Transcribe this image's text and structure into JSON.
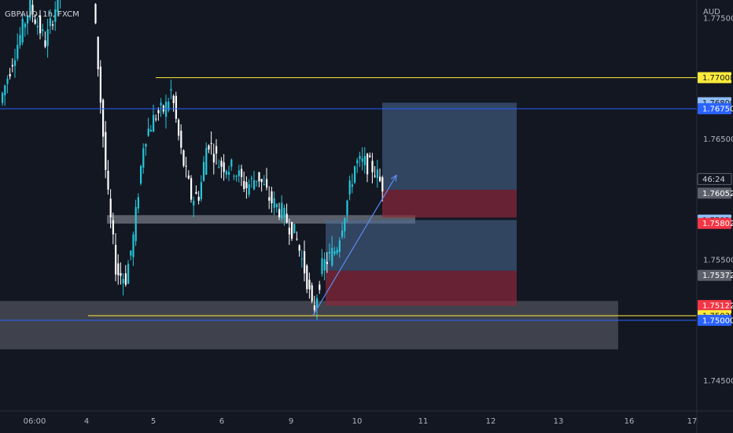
{
  "header": {
    "symbol_label": "GBPAUD, 1h, FXCM",
    "currency": "AUD"
  },
  "colors": {
    "background": "#131722",
    "bull_candle": "#26c6da",
    "bear_candle": "#ffffff",
    "resistance_line": "#ffeb3b",
    "blue_line": "#2962ff",
    "zone": "#b2b5be",
    "target_box": "#4a6a93",
    "stop_box": "#8c2a3a",
    "axis_text": "#b2b5be"
  },
  "chart_data": {
    "type": "candlestick",
    "symbol": "GBPAUD",
    "timeframe": "1h",
    "broker": "FXCM",
    "y_axis": {
      "unit": "AUD",
      "range": [
        1.7425,
        1.7765
      ],
      "ticks": [
        "1.77500",
        "1.76500",
        "1.75500",
        "1.74500"
      ]
    },
    "x_axis": {
      "ticks": [
        "06:00",
        "4",
        "5",
        "6",
        "9",
        "10",
        "11",
        "12",
        "13",
        "16",
        "17"
      ]
    },
    "price_tags": [
      {
        "value": "1.77008",
        "style": "yellow"
      },
      {
        "value": "1.76800",
        "style": "lightblue"
      },
      {
        "value": "1.76750",
        "style": "blue"
      },
      {
        "value": "46:24",
        "style": "countdown"
      },
      {
        "value": "1.76052",
        "style": "gray"
      },
      {
        "value": "1.75829",
        "style": "lightblue"
      },
      {
        "value": "1.75802",
        "style": "red"
      },
      {
        "value": "1.75372",
        "style": "gray"
      },
      {
        "value": "1.75122",
        "style": "red"
      },
      {
        "value": "1.75038",
        "style": "yellow"
      },
      {
        "value": "1.75000",
        "style": "blue"
      }
    ],
    "horizontal_lines": [
      {
        "price": 1.77008,
        "color": "yellow"
      },
      {
        "price": 1.7675,
        "color": "blue"
      },
      {
        "price": 1.75038,
        "color": "yellow"
      },
      {
        "price": 1.75,
        "color": "blue"
      }
    ],
    "zones": [
      {
        "top": 1.7587,
        "bottom": 1.758
      },
      {
        "top": 1.7516,
        "bottom": 1.7476
      }
    ],
    "positions": [
      {
        "kind": "long",
        "target": 1.768,
        "entry": 1.7608,
        "stop": 1.7585
      },
      {
        "kind": "long",
        "target": 1.7583,
        "entry": 1.7541,
        "stop": 1.7512
      }
    ],
    "trend_arrow": {
      "from_price": 1.7504,
      "to_price": 1.762
    }
  }
}
